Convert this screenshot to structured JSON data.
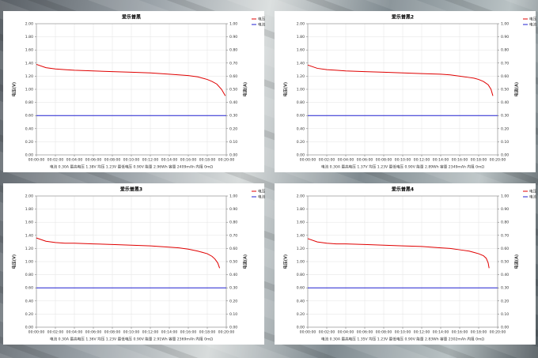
{
  "chart_data": [
    {
      "type": "line",
      "title": "爱乐普黑",
      "ylabel": "电压(V)",
      "y2label": "电流(A)",
      "note": "电流 0.30A 最高电压 1.38V 均压 1.23V 最低电压 0.90V 能量 2.96Wh 容量 2409mAh 内阻 0mΩ",
      "legend": "right",
      "grid": true,
      "xlim": [
        0,
        20
      ],
      "xticks": [
        {
          "value": 0,
          "label": "00:00:00"
        },
        {
          "value": 2,
          "label": "00:02:00"
        },
        {
          "value": 4,
          "label": "00:04:00"
        },
        {
          "value": 6,
          "label": "00:06:00"
        },
        {
          "value": 8,
          "label": "00:08:00"
        },
        {
          "value": 10,
          "label": "00:10:00"
        },
        {
          "value": 12,
          "label": "00:12:00"
        },
        {
          "value": 14,
          "label": "00:14:00"
        },
        {
          "value": 16,
          "label": "00:16:00"
        },
        {
          "value": 18,
          "label": "00:18:00"
        },
        {
          "value": 20,
          "label": "00:20:00"
        }
      ],
      "ylim": [
        0,
        2
      ],
      "yticks": [
        {
          "value": 0,
          "label": "0.00"
        },
        {
          "value": 0.2,
          "label": "0.20"
        },
        {
          "value": 0.4,
          "label": "0.40"
        },
        {
          "value": 0.6,
          "label": "0.60"
        },
        {
          "value": 0.8,
          "label": "0.80"
        },
        {
          "value": 1,
          "label": "1.00"
        },
        {
          "value": 1.2,
          "label": "1.20"
        },
        {
          "value": 1.4,
          "label": "1.40"
        },
        {
          "value": 1.6,
          "label": "1.60"
        },
        {
          "value": 1.8,
          "label": "1.80"
        },
        {
          "value": 2,
          "label": "2.00"
        }
      ],
      "y2lim": [
        0,
        1
      ],
      "y2ticks": [
        {
          "value": 0,
          "label": "0.00"
        },
        {
          "value": 0.1,
          "label": "0.10"
        },
        {
          "value": 0.2,
          "label": "0.20"
        },
        {
          "value": 0.3,
          "label": "0.30"
        },
        {
          "value": 0.4,
          "label": "0.40"
        },
        {
          "value": 0.5,
          "label": "0.50"
        },
        {
          "value": 0.6,
          "label": "0.60"
        },
        {
          "value": 0.7,
          "label": "0.70"
        },
        {
          "value": 0.8,
          "label": "0.80"
        },
        {
          "value": 0.9,
          "label": "0.90"
        },
        {
          "value": 1,
          "label": "1.00"
        }
      ],
      "series": [
        {
          "name": "电压",
          "color": "#e00000",
          "x": [
            0,
            1,
            2,
            3,
            4,
            6,
            8,
            10,
            12,
            14,
            15,
            16,
            17,
            17.5,
            18,
            18.5,
            19,
            19.5,
            19.9
          ],
          "values": [
            1.38,
            1.33,
            1.31,
            1.3,
            1.29,
            1.28,
            1.27,
            1.26,
            1.25,
            1.23,
            1.22,
            1.21,
            1.19,
            1.17,
            1.15,
            1.12,
            1.08,
            1.0,
            0.9
          ]
        },
        {
          "name": "电流",
          "color": "#2020d0",
          "axis": "y2",
          "x": [
            0,
            20
          ],
          "values": [
            0.3,
            0.3
          ]
        }
      ]
    },
    {
      "type": "line",
      "title": "爱乐普黑2",
      "ylabel": "电压(V)",
      "y2label": "电流(A)",
      "note": "电流 0.30A 最高电压 1.37V 均压 1.23V 最低电压 0.90V 能量 2.89Wh 容量 2349mAh 内阻 0mΩ",
      "legend": "right",
      "grid": true,
      "xlim": [
        0,
        20
      ],
      "xticks": [
        {
          "value": 0,
          "label": "00:00:00"
        },
        {
          "value": 2,
          "label": "00:02:00"
        },
        {
          "value": 4,
          "label": "00:04:00"
        },
        {
          "value": 6,
          "label": "00:06:00"
        },
        {
          "value": 8,
          "label": "00:08:00"
        },
        {
          "value": 10,
          "label": "00:10:00"
        },
        {
          "value": 12,
          "label": "00:12:00"
        },
        {
          "value": 14,
          "label": "00:14:00"
        },
        {
          "value": 16,
          "label": "00:16:00"
        },
        {
          "value": 18,
          "label": "00:18:00"
        },
        {
          "value": 20,
          "label": "00:20:00"
        }
      ],
      "ylim": [
        0,
        2
      ],
      "yticks": [
        {
          "value": 0,
          "label": "0.00"
        },
        {
          "value": 0.2,
          "label": "0.20"
        },
        {
          "value": 0.4,
          "label": "0.40"
        },
        {
          "value": 0.6,
          "label": "0.60"
        },
        {
          "value": 0.8,
          "label": "0.80"
        },
        {
          "value": 1,
          "label": "1.00"
        },
        {
          "value": 1.2,
          "label": "1.20"
        },
        {
          "value": 1.4,
          "label": "1.40"
        },
        {
          "value": 1.6,
          "label": "1.60"
        },
        {
          "value": 1.8,
          "label": "1.80"
        },
        {
          "value": 2,
          "label": "2.00"
        }
      ],
      "y2lim": [
        0,
        1
      ],
      "y2ticks": [
        {
          "value": 0,
          "label": "0.00"
        },
        {
          "value": 0.1,
          "label": "0.10"
        },
        {
          "value": 0.2,
          "label": "0.20"
        },
        {
          "value": 0.3,
          "label": "0.30"
        },
        {
          "value": 0.4,
          "label": "0.40"
        },
        {
          "value": 0.5,
          "label": "0.50"
        },
        {
          "value": 0.6,
          "label": "0.60"
        },
        {
          "value": 0.7,
          "label": "0.70"
        },
        {
          "value": 0.8,
          "label": "0.80"
        },
        {
          "value": 0.9,
          "label": "0.90"
        },
        {
          "value": 1,
          "label": "1.00"
        }
      ],
      "series": [
        {
          "name": "电压",
          "color": "#e00000",
          "x": [
            0,
            1,
            2,
            3,
            4,
            6,
            8,
            10,
            12,
            14,
            15,
            16,
            17,
            17.5,
            18,
            18.5,
            19,
            19.3,
            19.5
          ],
          "values": [
            1.37,
            1.32,
            1.3,
            1.29,
            1.28,
            1.27,
            1.26,
            1.25,
            1.24,
            1.23,
            1.22,
            1.2,
            1.18,
            1.17,
            1.15,
            1.12,
            1.07,
            1.0,
            0.9
          ]
        },
        {
          "name": "电流",
          "color": "#2020d0",
          "axis": "y2",
          "x": [
            0,
            20
          ],
          "values": [
            0.3,
            0.3
          ]
        }
      ]
    },
    {
      "type": "line",
      "title": "爱乐普黑3",
      "ylabel": "电压(V)",
      "y2label": "电流(A)",
      "note": "电流 0.30A 最高电压 1.36V 均压 1.23V 最低电压 0.90V 能量 2.91Wh 容量 2369mAh 内阻 0mΩ",
      "legend": "right",
      "grid": true,
      "xlim": [
        0,
        20
      ],
      "xticks": [
        {
          "value": 0,
          "label": "00:00:00"
        },
        {
          "value": 2,
          "label": "00:02:00"
        },
        {
          "value": 4,
          "label": "00:04:00"
        },
        {
          "value": 6,
          "label": "00:06:00"
        },
        {
          "value": 8,
          "label": "00:08:00"
        },
        {
          "value": 10,
          "label": "00:10:00"
        },
        {
          "value": 12,
          "label": "00:12:00"
        },
        {
          "value": 14,
          "label": "00:14:00"
        },
        {
          "value": 16,
          "label": "00:16:00"
        },
        {
          "value": 18,
          "label": "00:18:00"
        },
        {
          "value": 20,
          "label": "00:20:00"
        }
      ],
      "ylim": [
        0,
        2
      ],
      "yticks": [
        {
          "value": 0,
          "label": "0.00"
        },
        {
          "value": 0.2,
          "label": "0.20"
        },
        {
          "value": 0.4,
          "label": "0.40"
        },
        {
          "value": 0.6,
          "label": "0.60"
        },
        {
          "value": 0.8,
          "label": "0.80"
        },
        {
          "value": 1,
          "label": "1.00"
        },
        {
          "value": 1.2,
          "label": "1.20"
        },
        {
          "value": 1.4,
          "label": "1.40"
        },
        {
          "value": 1.6,
          "label": "1.60"
        },
        {
          "value": 1.8,
          "label": "1.80"
        },
        {
          "value": 2,
          "label": "2.00"
        }
      ],
      "y2lim": [
        0,
        1
      ],
      "y2ticks": [
        {
          "value": 0,
          "label": "0.00"
        },
        {
          "value": 0.1,
          "label": "0.10"
        },
        {
          "value": 0.2,
          "label": "0.20"
        },
        {
          "value": 0.3,
          "label": "0.30"
        },
        {
          "value": 0.4,
          "label": "0.40"
        },
        {
          "value": 0.5,
          "label": "0.50"
        },
        {
          "value": 0.6,
          "label": "0.60"
        },
        {
          "value": 0.7,
          "label": "0.70"
        },
        {
          "value": 0.8,
          "label": "0.80"
        },
        {
          "value": 0.9,
          "label": "0.90"
        },
        {
          "value": 1,
          "label": "1.00"
        }
      ],
      "series": [
        {
          "name": "电压",
          "color": "#e00000",
          "x": [
            0,
            1,
            2,
            3,
            4,
            6,
            8,
            10,
            12,
            14,
            15,
            16,
            17,
            17.5,
            18,
            18.5,
            18.8,
            19.1,
            19.3
          ],
          "values": [
            1.36,
            1.31,
            1.29,
            1.28,
            1.28,
            1.27,
            1.26,
            1.25,
            1.24,
            1.22,
            1.21,
            1.19,
            1.16,
            1.14,
            1.12,
            1.08,
            1.04,
            0.98,
            0.9
          ]
        },
        {
          "name": "电流",
          "color": "#2020d0",
          "axis": "y2",
          "x": [
            0,
            20
          ],
          "values": [
            0.3,
            0.3
          ]
        }
      ]
    },
    {
      "type": "line",
      "title": "爱乐普黑4",
      "ylabel": "电压(V)",
      "y2label": "电流(A)",
      "note": "电流 0.30A 最高电压 1.35V 均压 1.23V 最低电压 0.90V 能量 2.83Wh 容量 2302mAh 内阻 0mΩ",
      "legend": "right",
      "grid": true,
      "xlim": [
        0,
        20
      ],
      "xticks": [
        {
          "value": 0,
          "label": "00:00:00"
        },
        {
          "value": 2,
          "label": "00:02:00"
        },
        {
          "value": 4,
          "label": "00:04:00"
        },
        {
          "value": 6,
          "label": "00:06:00"
        },
        {
          "value": 8,
          "label": "00:08:00"
        },
        {
          "value": 10,
          "label": "00:10:00"
        },
        {
          "value": 12,
          "label": "00:12:00"
        },
        {
          "value": 14,
          "label": "00:14:00"
        },
        {
          "value": 16,
          "label": "00:16:00"
        },
        {
          "value": 18,
          "label": "00:18:00"
        },
        {
          "value": 20,
          "label": "00:20:00"
        }
      ],
      "ylim": [
        0,
        2
      ],
      "yticks": [
        {
          "value": 0,
          "label": "0.00"
        },
        {
          "value": 0.2,
          "label": "0.20"
        },
        {
          "value": 0.4,
          "label": "0.40"
        },
        {
          "value": 0.6,
          "label": "0.60"
        },
        {
          "value": 0.8,
          "label": "0.80"
        },
        {
          "value": 1,
          "label": "1.00"
        },
        {
          "value": 1.2,
          "label": "1.20"
        },
        {
          "value": 1.4,
          "label": "1.40"
        },
        {
          "value": 1.6,
          "label": "1.60"
        },
        {
          "value": 1.8,
          "label": "1.80"
        },
        {
          "value": 2,
          "label": "2.00"
        }
      ],
      "y2lim": [
        0,
        1
      ],
      "y2ticks": [
        {
          "value": 0,
          "label": "0.00"
        },
        {
          "value": 0.1,
          "label": "0.10"
        },
        {
          "value": 0.2,
          "label": "0.20"
        },
        {
          "value": 0.3,
          "label": "0.30"
        },
        {
          "value": 0.4,
          "label": "0.40"
        },
        {
          "value": 0.5,
          "label": "0.50"
        },
        {
          "value": 0.6,
          "label": "0.60"
        },
        {
          "value": 0.7,
          "label": "0.70"
        },
        {
          "value": 0.8,
          "label": "0.80"
        },
        {
          "value": 0.9,
          "label": "0.90"
        },
        {
          "value": 1,
          "label": "1.00"
        }
      ],
      "series": [
        {
          "name": "电压",
          "color": "#e00000",
          "x": [
            0,
            1,
            2,
            3,
            4,
            6,
            8,
            10,
            12,
            14,
            15,
            16,
            17,
            17.5,
            18,
            18.5,
            18.8,
            19,
            19.1
          ],
          "values": [
            1.35,
            1.3,
            1.28,
            1.27,
            1.27,
            1.26,
            1.25,
            1.24,
            1.23,
            1.21,
            1.2,
            1.18,
            1.16,
            1.14,
            1.12,
            1.09,
            1.05,
            0.98,
            0.9
          ]
        },
        {
          "name": "电流",
          "color": "#2020d0",
          "axis": "y2",
          "x": [
            0,
            20
          ],
          "values": [
            0.3,
            0.3
          ]
        }
      ]
    }
  ]
}
